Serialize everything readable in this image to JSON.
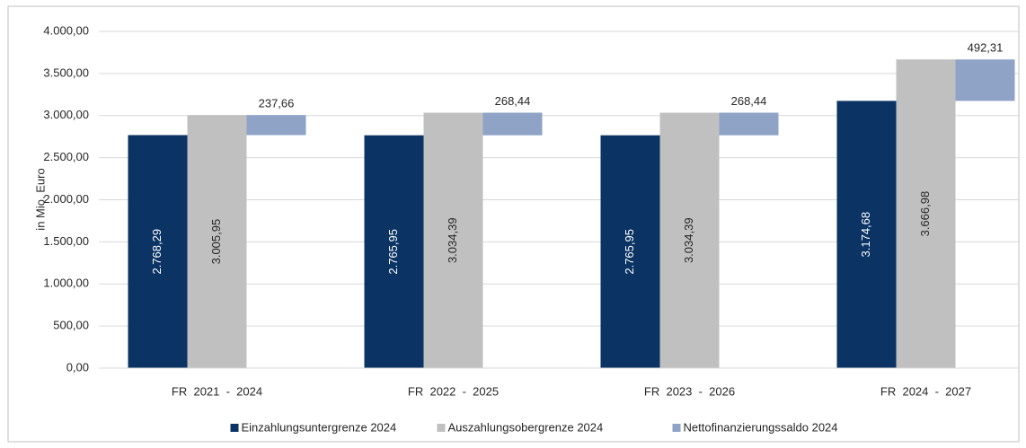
{
  "chart_data": {
    "type": "bar",
    "y_label": "in Mio. Euro",
    "categories": [
      "FR  2021  -  2024",
      "FR  2022  -  2025",
      "FR  2023  -  2026",
      "FR  2024  -  2027"
    ],
    "series": [
      {
        "name": "Einzahlungsuntergrenze 2024",
        "color": "#0b3364",
        "values": [
          2768.29,
          2765.95,
          2765.95,
          3174.68
        ],
        "value_labels": [
          "2.768,29",
          "2.765,95",
          "2.765,95",
          "3.174,68"
        ]
      },
      {
        "name": "Auszahlungsobergrenze 2024",
        "color": "#c0c0c0",
        "values": [
          3005.95,
          3034.39,
          3034.39,
          3666.98
        ],
        "value_labels": [
          "3.005,95",
          "3.034,39",
          "3.034,39",
          "3.666,98"
        ]
      },
      {
        "name": "Nettofinanzierungssaldo 2024",
        "color": "#8ea3c6",
        "values": [
          237.66,
          268.44,
          268.44,
          492.31
        ],
        "value_labels": [
          "237,66",
          "268,44",
          "268,44",
          "492,31"
        ]
      }
    ],
    "ylim": [
      0,
      4000
    ],
    "yticks": [
      {
        "value": 0,
        "label": "0,00"
      },
      {
        "value": 500,
        "label": "500,00"
      },
      {
        "value": 1000,
        "label": "1.000,00"
      },
      {
        "value": 1500,
        "label": "1.500,00"
      },
      {
        "value": 2000,
        "label": "2.000,00"
      },
      {
        "value": 2500,
        "label": "2.500,00"
      },
      {
        "value": 3000,
        "label": "3.000,00"
      },
      {
        "value": 3500,
        "label": "3.500,00"
      },
      {
        "value": 4000,
        "label": "4.000,00"
      }
    ],
    "grid": true,
    "legend": "bottom"
  }
}
